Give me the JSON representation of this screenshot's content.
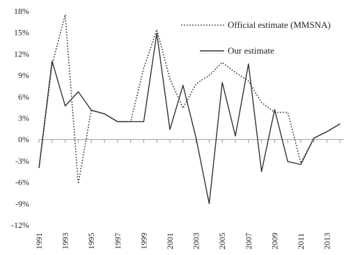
{
  "chart_data": {
    "type": "line",
    "x": [
      1991,
      1992,
      1993,
      1994,
      1995,
      1996,
      1997,
      1998,
      1999,
      2000,
      2001,
      2002,
      2003,
      2004,
      2005,
      2006,
      2007,
      2008,
      2009,
      2010,
      2011,
      2012,
      2013,
      2014
    ],
    "xtick_labels": [
      "1991",
      "1993",
      "1995",
      "1997",
      "1999",
      "2001",
      "2003",
      "2005",
      "2007",
      "2009",
      "2011",
      "2013"
    ],
    "ytick_labels": [
      "18%",
      "15%",
      "12%",
      "9%",
      "6%",
      "3%",
      "0%",
      "-3%",
      "-6%",
      "-9%",
      "-12%"
    ],
    "ylim": [
      -12,
      18
    ],
    "series": [
      {
        "name": "Official estimate (MMSNA)",
        "style": "dotted",
        "color": "#333333",
        "values": [
          -4.0,
          10.5,
          17.5,
          -6.2,
          4.1,
          3.6,
          2.5,
          2.5,
          10.0,
          15.4,
          8.5,
          4.4,
          7.8,
          9.0,
          10.8,
          9.4,
          8.2,
          5.2,
          3.8,
          3.8,
          -3.3,
          0.2,
          1.1,
          2.2
        ]
      },
      {
        "name": "Our estimate",
        "style": "solid",
        "color": "#333333",
        "values": [
          -4.0,
          11.0,
          4.7,
          6.7,
          4.1,
          3.6,
          2.5,
          2.5,
          2.5,
          14.9,
          1.4,
          7.6,
          0.2,
          -9.0,
          8.0,
          0.5,
          10.6,
          -4.5,
          4.2,
          -3.1,
          -3.5,
          0.2,
          1.1,
          2.2
        ]
      }
    ],
    "legend_placement": "top-right",
    "grid": false
  }
}
